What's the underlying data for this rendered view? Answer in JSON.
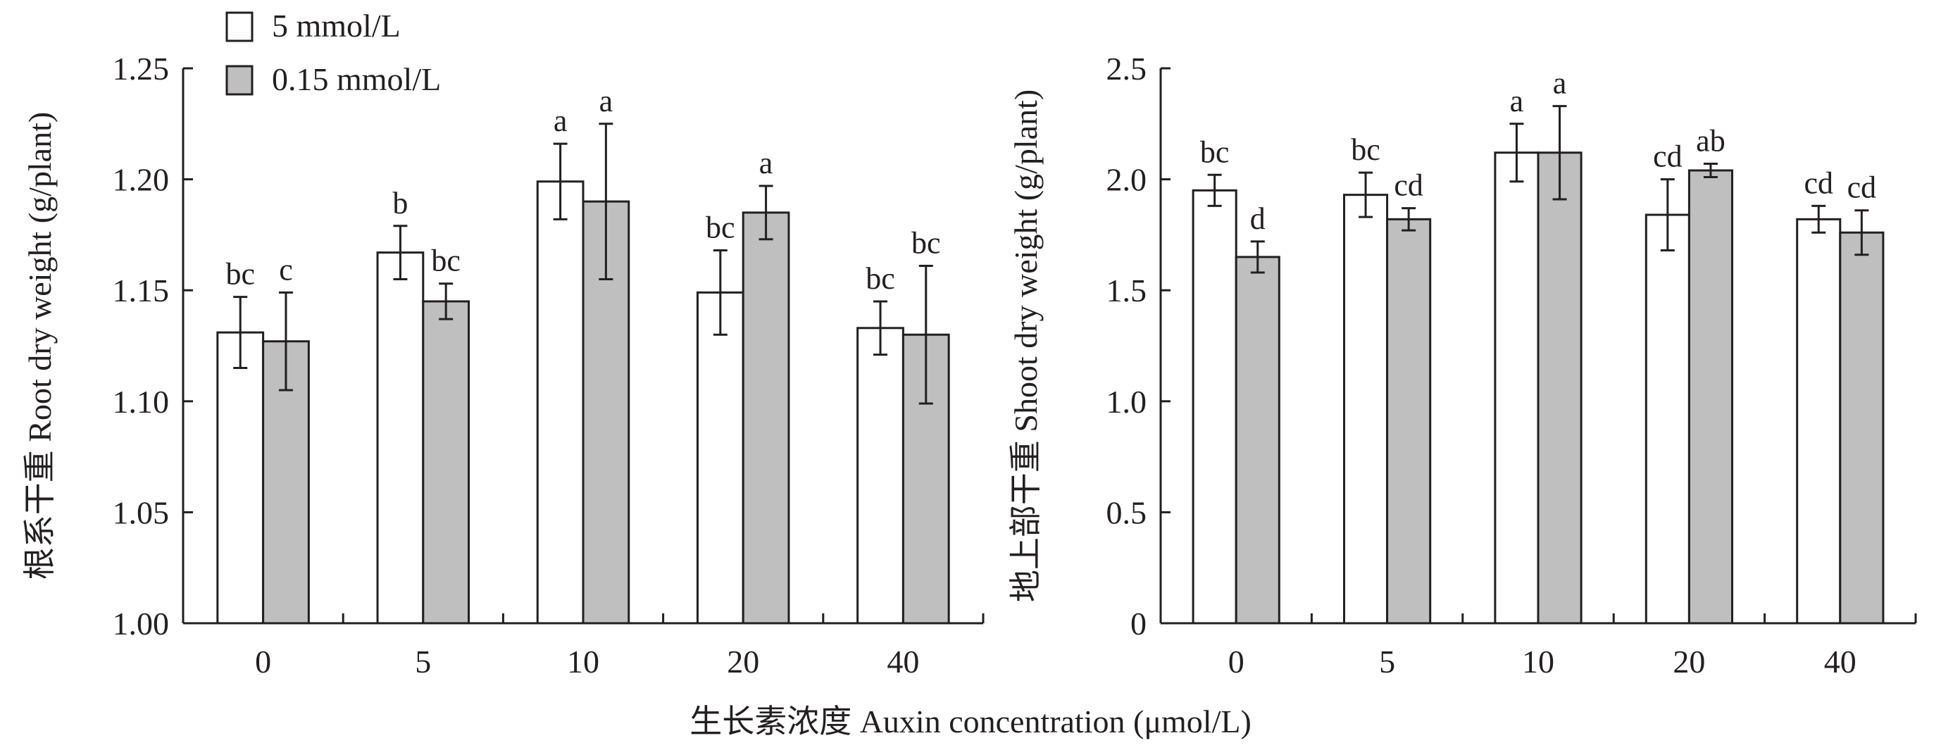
{
  "shared": {
    "xlabel": "生长素浓度 Auxin concentration (μmol/L)",
    "categories": [
      "0",
      "5",
      "10",
      "20",
      "40"
    ]
  },
  "legend": [
    {
      "name": "5 mmol/L",
      "color": "#ffffff"
    },
    {
      "name": "0.15 mmol/L",
      "color": "#bfbfbf"
    }
  ],
  "chart_data": [
    {
      "type": "bar",
      "title": "",
      "ylabel": "根系干重 Root dry weight (g/plant)",
      "ylim": [
        1.0,
        1.25
      ],
      "yticks": [
        "1.00",
        "1.05",
        "1.10",
        "1.15",
        "1.20",
        "1.25"
      ],
      "categories": [
        "0",
        "5",
        "10",
        "20",
        "40"
      ],
      "series": [
        {
          "name": "5 mmol/L",
          "values": [
            1.131,
            1.167,
            1.199,
            1.149,
            1.133
          ],
          "errors": [
            0.016,
            0.012,
            0.017,
            0.019,
            0.012
          ],
          "letters": [
            "bc",
            "b",
            "a",
            "bc",
            "bc"
          ]
        },
        {
          "name": "0.15 mmol/L",
          "values": [
            1.127,
            1.145,
            1.19,
            1.185,
            1.13
          ],
          "errors": [
            0.022,
            0.008,
            0.035,
            0.012,
            0.031
          ],
          "letters": [
            "c",
            "bc",
            "a",
            "a",
            "bc"
          ]
        }
      ]
    },
    {
      "type": "bar",
      "title": "",
      "ylabel": "地上部干重 Shoot dry weight (g/plant)",
      "ylim": [
        0,
        2.5
      ],
      "yticks": [
        "0",
        "0.5",
        "1.0",
        "1.5",
        "2.0",
        "2.5"
      ],
      "categories": [
        "0",
        "5",
        "10",
        "20",
        "40"
      ],
      "series": [
        {
          "name": "5 mmol/L",
          "values": [
            1.95,
            1.93,
            2.12,
            1.84,
            1.82
          ],
          "errors": [
            0.07,
            0.1,
            0.13,
            0.16,
            0.06
          ],
          "letters": [
            "bc",
            "bc",
            "a",
            "cd",
            "cd"
          ]
        },
        {
          "name": "0.15 mmol/L",
          "values": [
            1.65,
            1.82,
            2.12,
            2.04,
            1.76
          ],
          "errors": [
            0.07,
            0.05,
            0.21,
            0.03,
            0.1
          ],
          "letters": [
            "d",
            "cd",
            "a",
            "ab",
            "cd"
          ]
        }
      ]
    }
  ]
}
